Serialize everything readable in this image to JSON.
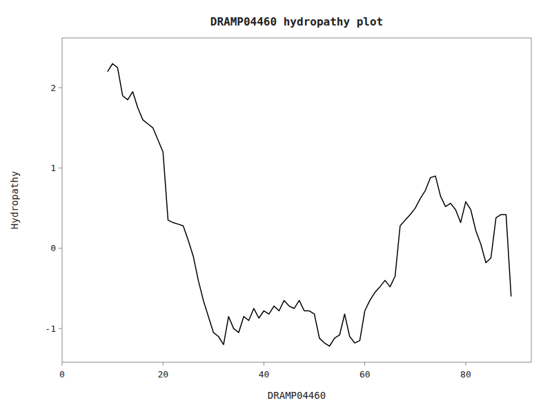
{
  "chart_data": {
    "type": "line",
    "title": "DRAMP04460 hydropathy plot",
    "xlabel": "DRAMP04460",
    "ylabel": "Hydropathy",
    "xlim": [
      0,
      93
    ],
    "ylim": [
      -1.42,
      2.62
    ],
    "xticks": [
      0,
      20,
      40,
      60,
      80
    ],
    "yticks": [
      -1,
      0,
      1,
      2
    ],
    "color": "#000000",
    "grid": false,
    "x": [
      9,
      10,
      11,
      12,
      13,
      14,
      15,
      16,
      17,
      18,
      19,
      20,
      21,
      22,
      23,
      24,
      25,
      26,
      27,
      28,
      29,
      30,
      31,
      32,
      33,
      34,
      35,
      36,
      37,
      38,
      39,
      40,
      41,
      42,
      43,
      44,
      45,
      46,
      47,
      48,
      49,
      50,
      51,
      52,
      53,
      54,
      55,
      56,
      57,
      58,
      59,
      60,
      61,
      62,
      63,
      64,
      65,
      66,
      67,
      68,
      69,
      70,
      71,
      72,
      73,
      74,
      75,
      76,
      77,
      78,
      79,
      80,
      81,
      82,
      83,
      84,
      85,
      86,
      87,
      88,
      89
    ],
    "values": [
      2.2,
      2.3,
      2.25,
      1.9,
      1.85,
      1.95,
      1.75,
      1.6,
      1.55,
      1.5,
      1.35,
      1.2,
      0.35,
      0.32,
      0.3,
      0.28,
      0.1,
      -0.1,
      -0.4,
      -0.65,
      -0.85,
      -1.05,
      -1.1,
      -1.2,
      -0.85,
      -1.0,
      -1.05,
      -0.85,
      -0.9,
      -0.75,
      -0.87,
      -0.78,
      -0.82,
      -0.72,
      -0.78,
      -0.65,
      -0.72,
      -0.75,
      -0.65,
      -0.78,
      -0.78,
      -0.82,
      -1.12,
      -1.18,
      -1.22,
      -1.12,
      -1.08,
      -0.82,
      -1.1,
      -1.18,
      -1.15,
      -0.78,
      -0.65,
      -0.55,
      -0.48,
      -0.4,
      -0.48,
      -0.35,
      0.28,
      0.35,
      0.42,
      0.5,
      0.62,
      0.72,
      0.88,
      0.9,
      0.65,
      0.52,
      0.56,
      0.48,
      0.32,
      0.58,
      0.48,
      0.22,
      0.05,
      -0.18,
      -0.12,
      0.38,
      0.42,
      0.42,
      -0.6
    ]
  }
}
